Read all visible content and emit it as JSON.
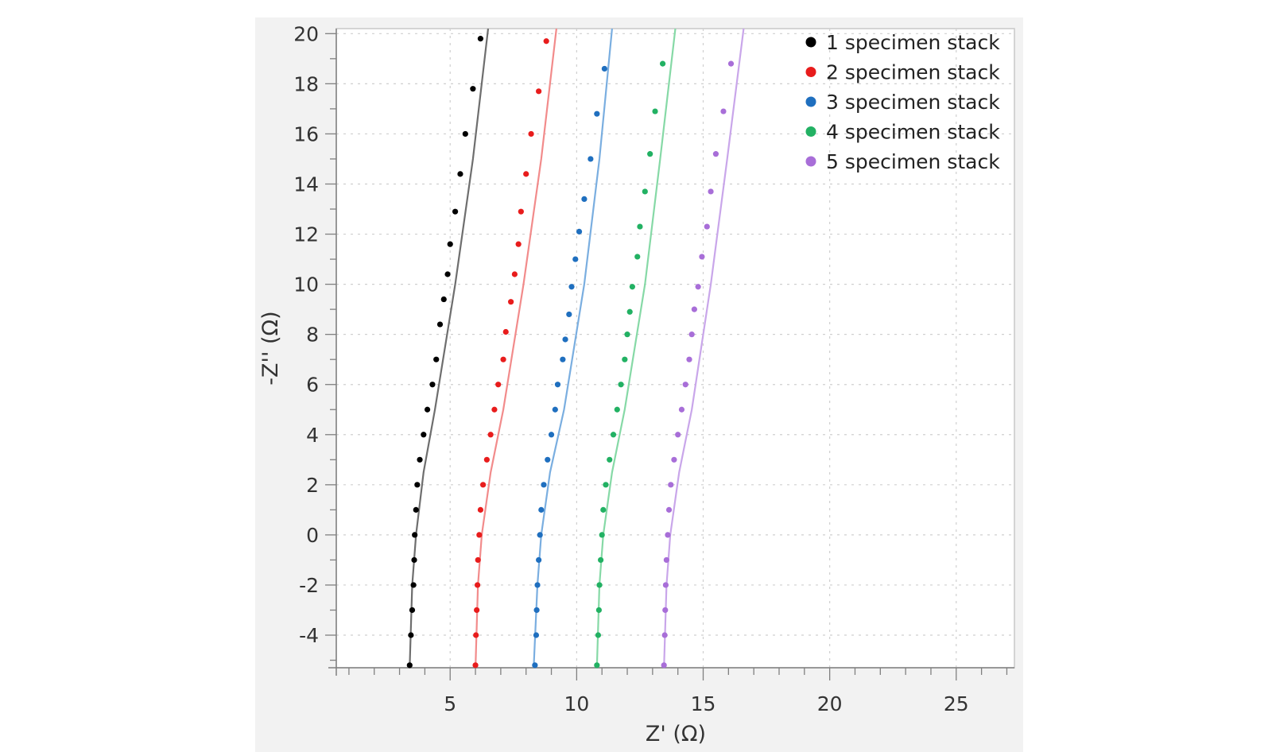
{
  "chart_data": {
    "type": "scatter",
    "title": "",
    "xlabel": "Z' (Ω)",
    "ylabel": "-Z'' (Ω)",
    "xlim": [
      0.5,
      27.3
    ],
    "ylim": [
      -5.3,
      20.2
    ],
    "xticks": [
      5,
      10,
      15,
      20,
      25
    ],
    "yticks": [
      20,
      18,
      16,
      14,
      12,
      10,
      8,
      6,
      4,
      2,
      0,
      -2,
      -4
    ],
    "grid": true,
    "legend_position": "top-right",
    "series": [
      {
        "name": "1 specimen stack",
        "color": "#000000",
        "line_color": "#6e6e6e",
        "points": [
          [
            3.4,
            -5.2
          ],
          [
            3.45,
            -4.0
          ],
          [
            3.5,
            -3.0
          ],
          [
            3.55,
            -2.0
          ],
          [
            3.58,
            -1.0
          ],
          [
            3.6,
            0
          ],
          [
            3.65,
            1.0
          ],
          [
            3.7,
            2.0
          ],
          [
            3.8,
            3.0
          ],
          [
            3.95,
            4.0
          ],
          [
            4.1,
            5.0
          ],
          [
            4.3,
            6.0
          ],
          [
            4.45,
            7.0
          ],
          [
            4.6,
            8.4
          ],
          [
            4.75,
            9.4
          ],
          [
            4.9,
            10.4
          ],
          [
            5.0,
            11.6
          ],
          [
            5.2,
            12.9
          ],
          [
            5.4,
            14.4
          ],
          [
            5.6,
            16.0
          ],
          [
            5.9,
            17.8
          ],
          [
            6.2,
            19.8
          ]
        ],
        "fit": [
          [
            3.4,
            -5.3
          ],
          [
            3.5,
            -2.0
          ],
          [
            3.65,
            0
          ],
          [
            3.95,
            2.5
          ],
          [
            4.4,
            5.0
          ],
          [
            5.2,
            10.0
          ],
          [
            5.9,
            15.0
          ],
          [
            6.5,
            20.2
          ]
        ]
      },
      {
        "name": "2 specimen stack",
        "color": "#e81c1c",
        "line_color": "#f28b8b",
        "points": [
          [
            6.0,
            -5.2
          ],
          [
            6.02,
            -4.0
          ],
          [
            6.05,
            -3.0
          ],
          [
            6.08,
            -2.0
          ],
          [
            6.1,
            -1.0
          ],
          [
            6.15,
            0
          ],
          [
            6.2,
            1.0
          ],
          [
            6.3,
            2.0
          ],
          [
            6.45,
            3.0
          ],
          [
            6.6,
            4.0
          ],
          [
            6.75,
            5.0
          ],
          [
            6.9,
            6.0
          ],
          [
            7.1,
            7.0
          ],
          [
            7.2,
            8.1
          ],
          [
            7.4,
            9.3
          ],
          [
            7.55,
            10.4
          ],
          [
            7.7,
            11.6
          ],
          [
            7.8,
            12.9
          ],
          [
            8.0,
            14.4
          ],
          [
            8.2,
            16.0
          ],
          [
            8.5,
            17.7
          ],
          [
            8.8,
            19.7
          ]
        ],
        "fit": [
          [
            6.0,
            -5.3
          ],
          [
            6.1,
            -2.0
          ],
          [
            6.25,
            0
          ],
          [
            6.6,
            2.5
          ],
          [
            7.1,
            5.0
          ],
          [
            7.9,
            10.0
          ],
          [
            8.6,
            15.0
          ],
          [
            9.2,
            20.2
          ]
        ]
      },
      {
        "name": "3 specimen stack",
        "color": "#1f6fbf",
        "line_color": "#7aaee0",
        "points": [
          [
            8.35,
            -5.2
          ],
          [
            8.4,
            -4.0
          ],
          [
            8.42,
            -3.0
          ],
          [
            8.45,
            -2.0
          ],
          [
            8.5,
            -1.0
          ],
          [
            8.55,
            0
          ],
          [
            8.6,
            1.0
          ],
          [
            8.7,
            2.0
          ],
          [
            8.85,
            3.0
          ],
          [
            9.0,
            4.0
          ],
          [
            9.15,
            5.0
          ],
          [
            9.25,
            6.0
          ],
          [
            9.45,
            7.0
          ],
          [
            9.55,
            7.8
          ],
          [
            9.7,
            8.8
          ],
          [
            9.8,
            9.9
          ],
          [
            9.95,
            11.0
          ],
          [
            10.1,
            12.1
          ],
          [
            10.3,
            13.4
          ],
          [
            10.55,
            15.0
          ],
          [
            10.8,
            16.8
          ],
          [
            11.1,
            18.6
          ]
        ],
        "fit": [
          [
            8.3,
            -5.3
          ],
          [
            8.45,
            -2.0
          ],
          [
            8.6,
            0
          ],
          [
            8.95,
            2.5
          ],
          [
            9.5,
            5.0
          ],
          [
            10.3,
            10.0
          ],
          [
            10.9,
            15.0
          ],
          [
            11.4,
            20.2
          ]
        ]
      },
      {
        "name": "4 specimen stack",
        "color": "#22b163",
        "line_color": "#86d9a6",
        "points": [
          [
            10.8,
            -5.2
          ],
          [
            10.85,
            -4.0
          ],
          [
            10.88,
            -3.0
          ],
          [
            10.9,
            -2.0
          ],
          [
            10.95,
            -1.0
          ],
          [
            11.0,
            0
          ],
          [
            11.05,
            1.0
          ],
          [
            11.15,
            2.0
          ],
          [
            11.3,
            3.0
          ],
          [
            11.45,
            4.0
          ],
          [
            11.6,
            5.0
          ],
          [
            11.75,
            6.0
          ],
          [
            11.9,
            7.0
          ],
          [
            12.0,
            8.0
          ],
          [
            12.1,
            8.9
          ],
          [
            12.2,
            9.9
          ],
          [
            12.4,
            11.1
          ],
          [
            12.5,
            12.3
          ],
          [
            12.7,
            13.7
          ],
          [
            12.9,
            15.2
          ],
          [
            13.1,
            16.9
          ],
          [
            13.4,
            18.8
          ]
        ],
        "fit": [
          [
            10.8,
            -5.3
          ],
          [
            10.9,
            -2.0
          ],
          [
            11.05,
            0
          ],
          [
            11.4,
            2.5
          ],
          [
            11.9,
            5.0
          ],
          [
            12.7,
            10.0
          ],
          [
            13.3,
            15.0
          ],
          [
            13.9,
            20.2
          ]
        ]
      },
      {
        "name": "5 specimen stack",
        "color": "#a86ed8",
        "line_color": "#c9a6ea",
        "points": [
          [
            13.45,
            -5.2
          ],
          [
            13.48,
            -4.0
          ],
          [
            13.5,
            -3.0
          ],
          [
            13.52,
            -2.0
          ],
          [
            13.55,
            -1.0
          ],
          [
            13.6,
            0
          ],
          [
            13.65,
            1.0
          ],
          [
            13.72,
            2.0
          ],
          [
            13.85,
            3.0
          ],
          [
            14.0,
            4.0
          ],
          [
            14.15,
            5.0
          ],
          [
            14.3,
            6.0
          ],
          [
            14.45,
            7.0
          ],
          [
            14.55,
            8.0
          ],
          [
            14.65,
            9.0
          ],
          [
            14.8,
            9.9
          ],
          [
            14.95,
            11.1
          ],
          [
            15.15,
            12.3
          ],
          [
            15.3,
            13.7
          ],
          [
            15.5,
            15.2
          ],
          [
            15.8,
            16.9
          ],
          [
            16.1,
            18.8
          ]
        ],
        "fit": [
          [
            13.45,
            -5.3
          ],
          [
            13.55,
            -2.0
          ],
          [
            13.7,
            0
          ],
          [
            14.05,
            2.5
          ],
          [
            14.55,
            5.0
          ],
          [
            15.3,
            10.0
          ],
          [
            15.95,
            15.0
          ],
          [
            16.6,
            20.2
          ]
        ]
      }
    ]
  }
}
